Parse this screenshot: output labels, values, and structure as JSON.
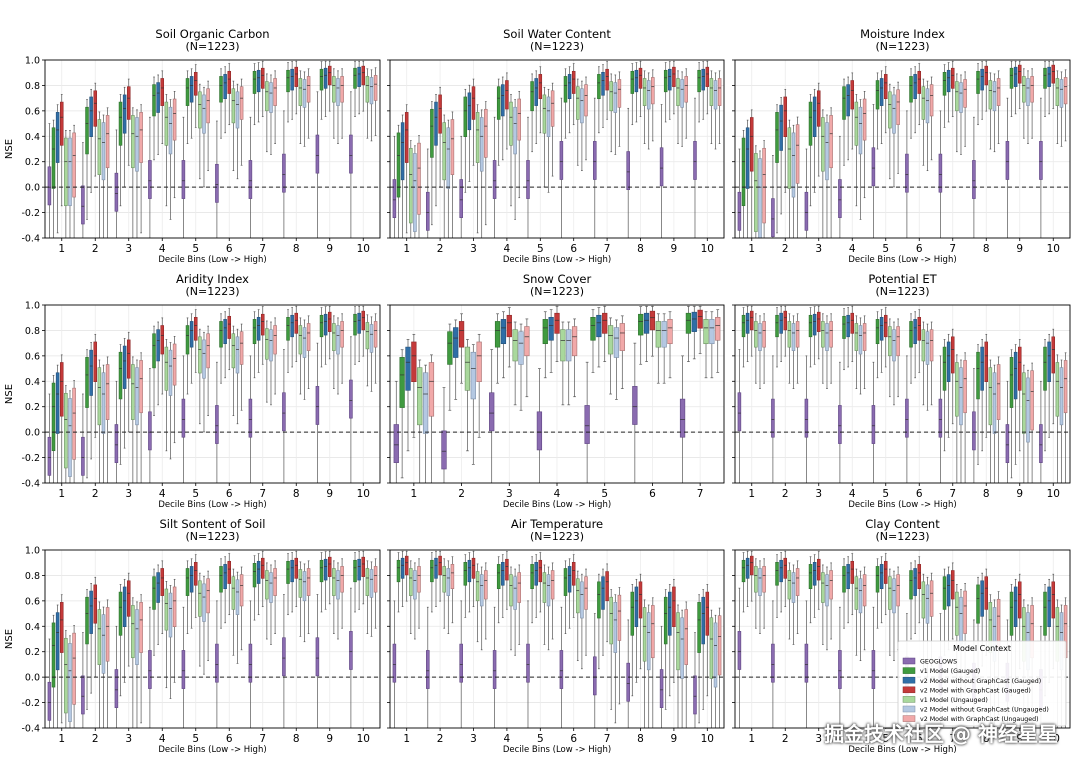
{
  "watermark": "掘金技术社区 @ 神经星星",
  "colors": {
    "GEOGLOWS": "#8a6bb0",
    "v1_gauged": "#3f9a3f",
    "v2_nogc_gauged": "#2f6ea6",
    "v2_gc_gauged": "#c43a3a",
    "v1_ungauged": "#a9d89c",
    "v2_nogc_ungauged": "#b4c8e2",
    "v2_gc_ungauged": "#f1a9a9"
  },
  "legend": {
    "title": "Model Context",
    "placement": "lower-right of last panel",
    "entries": [
      "GEOGLOWS",
      "v1 Model (Gauged)",
      "v2 Model without GraphCast (Gauged)",
      "v2 Model with GraphCast (Gauged)",
      "v1 Model (Ungauged)",
      "v2 Model without GraphCast (Ungauged)",
      "v2 Model with GraphCast (Ungauged)"
    ]
  },
  "chart_data": [
    {
      "type": "box",
      "title": "Soil Organic Carbon",
      "subtitle": "(N=1223)",
      "ylabel": "NSE",
      "xlabel": "Decile Bins (Low -> High)",
      "categories": [
        "1",
        "2",
        "3",
        "4",
        "5",
        "6",
        "7",
        "8",
        "9",
        "10"
      ],
      "ylim": [
        -0.4,
        1.0
      ],
      "yticks": [
        "-0.4",
        "-0.2",
        "0.0",
        "0.2",
        "0.4",
        "0.6",
        "0.8",
        "1.0"
      ],
      "reference_line": 0.0,
      "grid": true,
      "medians": {
        "GEOGLOWS": [
          0.0,
          -0.15,
          -0.05,
          0.05,
          0.05,
          0.02,
          0.05,
          0.1,
          0.25,
          0.25
        ],
        "v1_gauged": [
          0.3,
          0.5,
          0.55,
          0.72,
          0.78,
          0.8,
          0.85,
          0.86,
          0.87,
          0.88
        ],
        "v2_nogc_gauged": [
          0.45,
          0.6,
          0.62,
          0.74,
          0.8,
          0.82,
          0.86,
          0.87,
          0.88,
          0.89
        ],
        "v2_gc_gauged": [
          0.55,
          0.66,
          0.7,
          0.78,
          0.84,
          0.85,
          0.88,
          0.89,
          0.9,
          0.9
        ],
        "v1_ungauged": [
          0.2,
          0.38,
          0.42,
          0.55,
          0.65,
          0.68,
          0.75,
          0.78,
          0.8,
          0.8
        ],
        "v2_nogc_ungauged": [
          0.2,
          0.35,
          0.4,
          0.5,
          0.62,
          0.65,
          0.74,
          0.77,
          0.78,
          0.79
        ],
        "v2_gc_ungauged": [
          0.25,
          0.42,
          0.45,
          0.58,
          0.68,
          0.7,
          0.78,
          0.8,
          0.8,
          0.81
        ]
      }
    },
    {
      "type": "box",
      "title": "Soil Water Content",
      "subtitle": "(N=1223)",
      "ylabel": "",
      "xlabel": "Decile Bins (Low -> High)",
      "categories": [
        "1",
        "2",
        "3",
        "4",
        "5",
        "6",
        "7",
        "8",
        "9",
        "10"
      ],
      "ylim": [
        -0.4,
        1.0
      ],
      "yticks": [],
      "reference_line": 0.0,
      "grid": true,
      "medians": {
        "GEOGLOWS": [
          -0.1,
          -0.2,
          -0.1,
          0.05,
          0.05,
          0.2,
          0.2,
          0.12,
          0.15,
          0.2
        ],
        "v1_gauged": [
          0.25,
          0.48,
          0.6,
          0.7,
          0.75,
          0.8,
          0.82,
          0.85,
          0.86,
          0.86
        ],
        "v2_nogc_gauged": [
          0.35,
          0.55,
          0.64,
          0.72,
          0.78,
          0.82,
          0.84,
          0.86,
          0.87,
          0.87
        ],
        "v2_gc_gauged": [
          0.45,
          0.62,
          0.7,
          0.76,
          0.82,
          0.85,
          0.87,
          0.88,
          0.89,
          0.89
        ],
        "v1_ungauged": [
          0.1,
          0.35,
          0.45,
          0.55,
          0.62,
          0.7,
          0.75,
          0.78,
          0.78,
          0.78
        ],
        "v2_nogc_ungauged": [
          0.05,
          0.3,
          0.4,
          0.5,
          0.6,
          0.68,
          0.74,
          0.76,
          0.77,
          0.76
        ],
        "v2_gc_ungauged": [
          0.15,
          0.38,
          0.48,
          0.58,
          0.66,
          0.72,
          0.77,
          0.79,
          0.8,
          0.78
        ]
      }
    },
    {
      "type": "box",
      "title": "Moisture Index",
      "subtitle": "(N=1223)",
      "ylabel": "",
      "xlabel": "Decile Bins (Low -> High)",
      "categories": [
        "1",
        "2",
        "3",
        "4",
        "5",
        "6",
        "7",
        "8",
        "9",
        "10"
      ],
      "ylim": [
        -0.4,
        1.0
      ],
      "yticks": [],
      "reference_line": 0.0,
      "grid": true,
      "medians": {
        "GEOGLOWS": [
          -0.2,
          -0.25,
          -0.2,
          -0.1,
          0.15,
          0.1,
          0.1,
          0.05,
          0.2,
          0.2
        ],
        "v1_gauged": [
          0.2,
          0.45,
          0.55,
          0.7,
          0.76,
          0.8,
          0.84,
          0.85,
          0.88,
          0.88
        ],
        "v2_nogc_gauged": [
          0.3,
          0.52,
          0.6,
          0.72,
          0.78,
          0.82,
          0.86,
          0.87,
          0.89,
          0.89
        ],
        "v2_gc_gauged": [
          0.4,
          0.6,
          0.66,
          0.76,
          0.82,
          0.85,
          0.88,
          0.9,
          0.91,
          0.91
        ],
        "v1_ungauged": [
          0.05,
          0.3,
          0.4,
          0.55,
          0.65,
          0.7,
          0.75,
          0.76,
          0.8,
          0.78
        ],
        "v2_nogc_ungauged": [
          0.0,
          0.25,
          0.35,
          0.5,
          0.62,
          0.68,
          0.74,
          0.75,
          0.78,
          0.77
        ],
        "v2_gc_ungauged": [
          0.1,
          0.33,
          0.42,
          0.58,
          0.67,
          0.72,
          0.77,
          0.78,
          0.8,
          0.79
        ]
      }
    },
    {
      "type": "box",
      "title": "Aridity Index",
      "subtitle": "(N=1223)",
      "ylabel": "NSE",
      "xlabel": "Decile Bins (Low -> High)",
      "categories": [
        "1",
        "2",
        "3",
        "4",
        "5",
        "6",
        "7",
        "8",
        "9",
        "10"
      ],
      "ylim": [
        -0.4,
        1.0
      ],
      "yticks": [
        "-0.4",
        "-0.2",
        "0.0",
        "0.2",
        "0.4",
        "0.6",
        "0.8",
        "1.0"
      ],
      "reference_line": 0.0,
      "grid": true,
      "medians": {
        "GEOGLOWS": [
          -0.2,
          -0.2,
          -0.1,
          0.0,
          0.1,
          0.05,
          0.1,
          0.15,
          0.2,
          0.25
        ],
        "v1_gauged": [
          0.2,
          0.45,
          0.5,
          0.68,
          0.76,
          0.8,
          0.82,
          0.84,
          0.86,
          0.87
        ],
        "v2_nogc_gauged": [
          0.3,
          0.52,
          0.56,
          0.72,
          0.8,
          0.82,
          0.84,
          0.86,
          0.87,
          0.88
        ],
        "v2_gc_gauged": [
          0.4,
          0.6,
          0.62,
          0.76,
          0.84,
          0.85,
          0.87,
          0.88,
          0.89,
          0.9
        ],
        "v1_ungauged": [
          0.1,
          0.35,
          0.38,
          0.55,
          0.65,
          0.68,
          0.73,
          0.76,
          0.78,
          0.79
        ],
        "v2_nogc_ungauged": [
          0.05,
          0.3,
          0.35,
          0.52,
          0.62,
          0.65,
          0.72,
          0.74,
          0.76,
          0.77
        ],
        "v2_gc_ungauged": [
          0.15,
          0.38,
          0.42,
          0.58,
          0.68,
          0.7,
          0.76,
          0.78,
          0.8,
          0.8
        ]
      }
    },
    {
      "type": "box",
      "title": "Snow Cover",
      "subtitle": "(N=1223)",
      "ylabel": "",
      "xlabel": "Decile Bins (Low -> High)",
      "categories": [
        "1",
        "2",
        "3",
        "4",
        "5",
        "6",
        "7"
      ],
      "ylim": [
        -0.4,
        1.0
      ],
      "yticks": [],
      "reference_line": 0.0,
      "grid": true,
      "medians": {
        "GEOGLOWS": [
          -0.1,
          -0.15,
          0.15,
          0.0,
          0.05,
          0.2,
          0.1
        ],
        "v1_gauged": [
          0.45,
          0.7,
          0.8,
          0.82,
          0.84,
          0.87,
          0.88
        ],
        "v2_nogc_gauged": [
          0.55,
          0.74,
          0.82,
          0.84,
          0.86,
          0.88,
          0.89
        ],
        "v2_gc_gauged": [
          0.6,
          0.8,
          0.86,
          0.88,
          0.88,
          0.9,
          0.91
        ],
        "v1_ungauged": [
          0.35,
          0.55,
          0.72,
          0.72,
          0.76,
          0.8,
          0.82
        ],
        "v2_nogc_ungauged": [
          0.3,
          0.5,
          0.7,
          0.72,
          0.74,
          0.8,
          0.82
        ],
        "v2_gc_ungauged": [
          0.4,
          0.6,
          0.75,
          0.75,
          0.78,
          0.82,
          0.84
        ]
      }
    },
    {
      "type": "box",
      "title": "Potential ET",
      "subtitle": "(N=1223)",
      "ylabel": "",
      "xlabel": "Decile Bins (Low -> High)",
      "categories": [
        "1",
        "2",
        "3",
        "4",
        "5",
        "6",
        "7",
        "8",
        "9",
        "10"
      ],
      "ylim": [
        -0.4,
        1.0
      ],
      "yticks": [],
      "reference_line": 0.0,
      "grid": true,
      "medians": {
        "GEOGLOWS": [
          0.15,
          0.1,
          0.1,
          0.05,
          0.05,
          0.1,
          0.1,
          0.0,
          -0.1,
          -0.1
        ],
        "v1_gauged": [
          0.86,
          0.86,
          0.86,
          0.85,
          0.82,
          0.8,
          0.55,
          0.5,
          0.45,
          0.55
        ],
        "v2_nogc_gauged": [
          0.88,
          0.88,
          0.87,
          0.86,
          0.84,
          0.82,
          0.6,
          0.55,
          0.5,
          0.6
        ],
        "v2_gc_gauged": [
          0.9,
          0.9,
          0.89,
          0.88,
          0.86,
          0.84,
          0.65,
          0.6,
          0.55,
          0.65
        ],
        "v1_ungauged": [
          0.8,
          0.8,
          0.8,
          0.78,
          0.75,
          0.72,
          0.4,
          0.35,
          0.3,
          0.4
        ],
        "v2_nogc_ungauged": [
          0.78,
          0.78,
          0.78,
          0.76,
          0.72,
          0.7,
          0.35,
          0.3,
          0.25,
          0.35
        ],
        "v2_gc_ungauged": [
          0.8,
          0.8,
          0.8,
          0.78,
          0.75,
          0.72,
          0.42,
          0.38,
          0.32,
          0.42
        ]
      }
    },
    {
      "type": "box",
      "title": "Silt Sontent of Soil",
      "subtitle": "(N=1223)",
      "ylabel": "NSE",
      "xlabel": "Decile Bins (Low -> High)",
      "categories": [
        "1",
        "2",
        "3",
        "4",
        "5",
        "6",
        "7",
        "8",
        "9",
        "10"
      ],
      "ylim": [
        -0.4,
        1.0
      ],
      "yticks": [
        "-0.4",
        "-0.2",
        "0.0",
        "0.2",
        "0.4",
        "0.6",
        "0.8",
        "1.0"
      ],
      "reference_line": 0.0,
      "grid": true,
      "medians": {
        "GEOGLOWS": [
          -0.2,
          -0.15,
          -0.1,
          0.05,
          0.05,
          0.1,
          0.1,
          0.15,
          0.15,
          0.2
        ],
        "v1_gauged": [
          0.25,
          0.5,
          0.55,
          0.7,
          0.78,
          0.8,
          0.83,
          0.85,
          0.86,
          0.86
        ],
        "v2_nogc_gauged": [
          0.35,
          0.56,
          0.6,
          0.74,
          0.8,
          0.82,
          0.85,
          0.86,
          0.87,
          0.87
        ],
        "v2_gc_gauged": [
          0.45,
          0.62,
          0.66,
          0.78,
          0.84,
          0.85,
          0.88,
          0.88,
          0.89,
          0.89
        ],
        "v1_ungauged": [
          0.1,
          0.38,
          0.42,
          0.58,
          0.66,
          0.7,
          0.76,
          0.77,
          0.78,
          0.78
        ],
        "v2_nogc_ungauged": [
          0.05,
          0.33,
          0.38,
          0.54,
          0.63,
          0.67,
          0.74,
          0.75,
          0.76,
          0.77
        ],
        "v2_gc_ungauged": [
          0.15,
          0.4,
          0.45,
          0.6,
          0.68,
          0.72,
          0.78,
          0.78,
          0.8,
          0.8
        ]
      }
    },
    {
      "type": "box",
      "title": "Air Temperature",
      "subtitle": "(N=1223)",
      "ylabel": "",
      "xlabel": "Decile Bins (Low -> High)",
      "categories": [
        "1",
        "2",
        "3",
        "4",
        "5",
        "6",
        "7",
        "8",
        "9",
        "10"
      ],
      "ylim": [
        -0.4,
        1.0
      ],
      "yticks": [],
      "reference_line": 0.0,
      "grid": true,
      "medians": {
        "GEOGLOWS": [
          0.1,
          0.05,
          0.1,
          0.05,
          0.1,
          0.05,
          0.0,
          -0.05,
          -0.1,
          -0.15
        ],
        "v1_gauged": [
          0.86,
          0.86,
          0.84,
          0.82,
          0.82,
          0.78,
          0.65,
          0.55,
          0.5,
          0.45
        ],
        "v2_nogc_gauged": [
          0.88,
          0.88,
          0.86,
          0.84,
          0.84,
          0.8,
          0.7,
          0.6,
          0.55,
          0.5
        ],
        "v2_gc_gauged": [
          0.9,
          0.9,
          0.88,
          0.87,
          0.86,
          0.84,
          0.75,
          0.65,
          0.6,
          0.55
        ],
        "v1_ungauged": [
          0.78,
          0.8,
          0.75,
          0.72,
          0.74,
          0.68,
          0.5,
          0.4,
          0.35,
          0.3
        ],
        "v2_nogc_ungauged": [
          0.76,
          0.78,
          0.72,
          0.7,
          0.72,
          0.65,
          0.45,
          0.35,
          0.3,
          0.25
        ],
        "v2_gc_ungauged": [
          0.8,
          0.82,
          0.76,
          0.74,
          0.76,
          0.7,
          0.52,
          0.42,
          0.38,
          0.32
        ]
      }
    },
    {
      "type": "box",
      "title": "Clay Content",
      "subtitle": "(N=1223)",
      "ylabel": "",
      "xlabel": "Decile Bins (Low -> High)",
      "categories": [
        "1",
        "2",
        "3",
        "4",
        "5",
        "6",
        "7",
        "8",
        "9",
        "10"
      ],
      "ylim": [
        -0.4,
        1.0
      ],
      "yticks": [],
      "reference_line": 0.0,
      "grid": true,
      "medians": {
        "GEOGLOWS": [
          0.2,
          0.1,
          0.1,
          0.05,
          0.05,
          0.0,
          0.0,
          -0.05,
          -0.05,
          -0.1
        ],
        "v1_gauged": [
          0.86,
          0.84,
          0.82,
          0.8,
          0.8,
          0.76,
          0.7,
          0.62,
          0.55,
          0.55
        ],
        "v2_nogc_gauged": [
          0.88,
          0.86,
          0.84,
          0.82,
          0.82,
          0.78,
          0.72,
          0.66,
          0.6,
          0.6
        ],
        "v2_gc_gauged": [
          0.9,
          0.88,
          0.87,
          0.85,
          0.85,
          0.82,
          0.76,
          0.7,
          0.65,
          0.65
        ],
        "v1_ungauged": [
          0.8,
          0.76,
          0.74,
          0.7,
          0.7,
          0.65,
          0.55,
          0.45,
          0.4,
          0.4
        ],
        "v2_nogc_ungauged": [
          0.78,
          0.74,
          0.72,
          0.68,
          0.68,
          0.62,
          0.5,
          0.4,
          0.35,
          0.35
        ],
        "v2_gc_ungauged": [
          0.8,
          0.78,
          0.76,
          0.72,
          0.72,
          0.66,
          0.56,
          0.48,
          0.42,
          0.42
        ]
      }
    }
  ]
}
